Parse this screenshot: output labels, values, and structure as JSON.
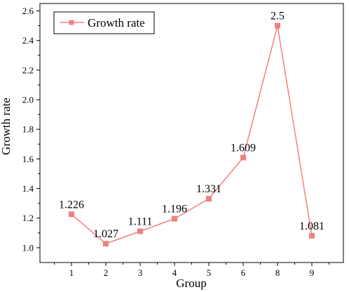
{
  "chart_data": {
    "type": "line",
    "categories": [
      "1",
      "2",
      "3",
      "4",
      "5",
      "6",
      "8",
      "9"
    ],
    "series": [
      {
        "name": "Growth rate",
        "values": [
          1.226,
          1.027,
          1.111,
          1.196,
          1.331,
          1.609,
          2.5,
          1.081
        ],
        "labels": [
          "1.226",
          "1.027",
          "1.111",
          "1.196",
          "1.331",
          "1.609",
          "2.5",
          "1.081"
        ],
        "color": "#f08080",
        "marker": "square"
      }
    ],
    "xlabel": "Group",
    "ylabel": "Growth rate",
    "ylim": [
      0.9,
      2.65
    ],
    "yticks": [
      1.0,
      1.2,
      1.4,
      1.6,
      1.8,
      2.0,
      2.2,
      2.4,
      2.6
    ],
    "ytick_labels": [
      "1.0",
      "1.2",
      "1.4",
      "1.6",
      "1.8",
      "2.0",
      "2.2",
      "2.4",
      "2.6"
    ],
    "grid": false,
    "legend_position": "top-left"
  }
}
